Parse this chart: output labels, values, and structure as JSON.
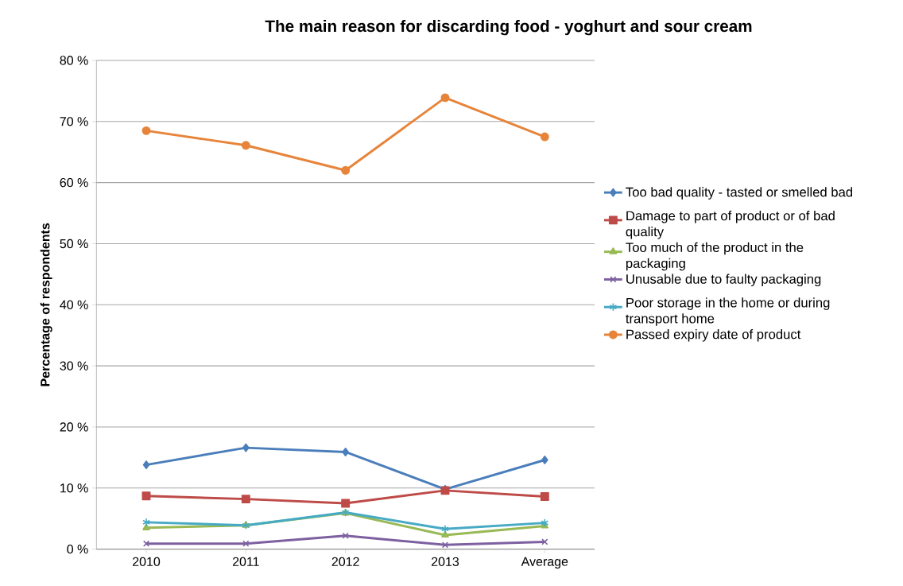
{
  "chart_data": {
    "type": "line",
    "title": "The main reason for discarding food - yoghurt and sour cream",
    "ylabel": "Percentage of respondents",
    "categories": [
      "2010",
      "2011",
      "2012",
      "2013",
      "Average"
    ],
    "series": [
      {
        "name": "Too bad quality - tasted or smelled bad",
        "color": "#4a7ebb",
        "marker": "diamond",
        "values": [
          13.8,
          16.6,
          15.9,
          9.8,
          14.6
        ]
      },
      {
        "name": "Damage  to part of product or of bad quality",
        "color": "#be4b48",
        "marker": "square",
        "values": [
          8.7,
          8.2,
          7.5,
          9.6,
          8.6
        ]
      },
      {
        "name": "Too much of the product in the packaging",
        "color": "#98b954",
        "marker": "triangle",
        "values": [
          3.5,
          3.9,
          5.9,
          2.3,
          3.8
        ]
      },
      {
        "name": "Unusable due to faulty packaging",
        "color": "#7d60a0",
        "marker": "cross",
        "values": [
          0.9,
          0.9,
          2.2,
          0.7,
          1.2
        ]
      },
      {
        "name": "Poor storage in the home or during transport home",
        "color": "#46aac5",
        "marker": "cross",
        "values": [
          4.4,
          3.9,
          6.0,
          3.3,
          4.3
        ]
      },
      {
        "name": "Passed expiry date of product",
        "color": "#e7843a",
        "marker": "circle",
        "values": [
          68.5,
          66.1,
          62.0,
          73.9,
          67.5
        ]
      }
    ],
    "ylim": [
      0,
      80
    ],
    "yticks": [
      {
        "value": 0,
        "label": "0 %"
      },
      {
        "value": 10,
        "label": "10 %"
      },
      {
        "value": 20,
        "label": "20 %"
      },
      {
        "value": 30,
        "label": "30 %"
      },
      {
        "value": 40,
        "label": "40 %"
      },
      {
        "value": 50,
        "label": "50 %"
      },
      {
        "value": 60,
        "label": "60 %"
      },
      {
        "value": 70,
        "label": "70 %"
      },
      {
        "value": 80,
        "label": "80 %"
      }
    ],
    "grid": "y",
    "legend": "right",
    "line_style": "solid"
  }
}
